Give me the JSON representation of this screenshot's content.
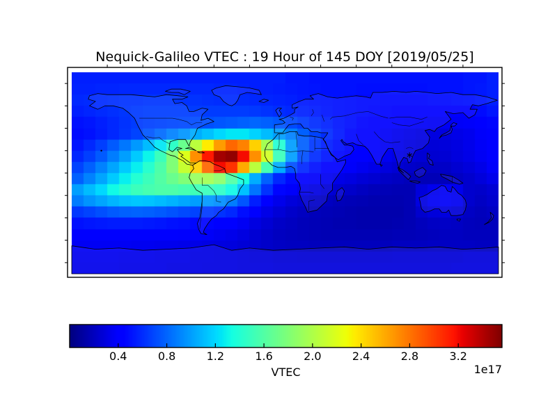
{
  "figure": {
    "background": "#ffffff"
  },
  "chart_data": {
    "type": "heatmap",
    "title": "Nequick-Galileo VTEC : 19 Hour of 145 DOY [2019/05/25]",
    "colormap": "jet",
    "projection": "equirectangular world map with coastlines and country borders",
    "colorbar": {
      "label": "VTEC",
      "offset_text": "1e17",
      "orientation": "horizontal",
      "vmin": 0.0,
      "vmax": 3.56,
      "ticks": [
        0.4,
        0.8,
        1.2,
        1.6,
        2.0,
        2.4,
        2.8,
        3.2
      ],
      "tick_labels": [
        "0.4",
        "0.8",
        "1.2",
        "1.6",
        "2.0",
        "2.4",
        "2.8",
        "3.2"
      ]
    },
    "x": {
      "name": "longitude",
      "min": -180,
      "max": 180,
      "cells": 36
    },
    "y": {
      "name": "latitude",
      "min": 90,
      "max": -90,
      "cells": 18
    },
    "values_unit": "1e17 electrons/m^2",
    "values": [
      [
        0.55,
        0.55,
        0.55,
        0.55,
        0.55,
        0.55,
        0.55,
        0.55,
        0.55,
        0.55,
        0.55,
        0.55,
        0.55,
        0.55,
        0.55,
        0.55,
        0.55,
        0.55,
        0.52,
        0.52,
        0.5,
        0.5,
        0.5,
        0.5,
        0.5,
        0.5,
        0.5,
        0.5,
        0.5,
        0.5,
        0.5,
        0.5,
        0.5,
        0.52,
        0.52,
        0.55
      ],
      [
        0.56,
        0.56,
        0.57,
        0.57,
        0.58,
        0.58,
        0.58,
        0.58,
        0.58,
        0.58,
        0.58,
        0.58,
        0.57,
        0.57,
        0.56,
        0.55,
        0.55,
        0.54,
        0.53,
        0.52,
        0.51,
        0.5,
        0.5,
        0.5,
        0.49,
        0.49,
        0.49,
        0.49,
        0.49,
        0.49,
        0.5,
        0.5,
        0.5,
        0.52,
        0.53,
        0.55
      ],
      [
        0.58,
        0.59,
        0.6,
        0.61,
        0.62,
        0.62,
        0.63,
        0.63,
        0.63,
        0.62,
        0.62,
        0.61,
        0.6,
        0.6,
        0.59,
        0.58,
        0.57,
        0.56,
        0.55,
        0.53,
        0.52,
        0.51,
        0.5,
        0.49,
        0.48,
        0.48,
        0.47,
        0.47,
        0.47,
        0.47,
        0.48,
        0.48,
        0.49,
        0.5,
        0.52,
        0.55
      ],
      [
        0.55,
        0.57,
        0.59,
        0.61,
        0.63,
        0.65,
        0.66,
        0.66,
        0.66,
        0.66,
        0.65,
        0.65,
        0.65,
        0.65,
        0.65,
        0.64,
        0.62,
        0.6,
        0.58,
        0.56,
        0.54,
        0.52,
        0.5,
        0.49,
        0.48,
        0.47,
        0.46,
        0.45,
        0.44,
        0.44,
        0.43,
        0.43,
        0.43,
        0.45,
        0.48,
        0.52
      ],
      [
        0.5,
        0.52,
        0.55,
        0.58,
        0.62,
        0.65,
        0.67,
        0.68,
        0.69,
        0.7,
        0.71,
        0.72,
        0.74,
        0.76,
        0.78,
        0.8,
        0.78,
        0.75,
        0.7,
        0.65,
        0.6,
        0.56,
        0.52,
        0.49,
        0.46,
        0.44,
        0.42,
        0.4,
        0.38,
        0.37,
        0.36,
        0.36,
        0.37,
        0.38,
        0.42,
        0.46
      ],
      [
        0.48,
        0.5,
        0.54,
        0.58,
        0.63,
        0.68,
        0.75,
        0.82,
        0.9,
        0.97,
        1.05,
        1.12,
        1.2,
        1.25,
        1.25,
        1.18,
        1.1,
        1.0,
        0.9,
        0.78,
        0.68,
        0.6,
        0.53,
        0.47,
        0.43,
        0.4,
        0.37,
        0.34,
        0.32,
        0.3,
        0.3,
        0.3,
        0.32,
        0.34,
        0.38,
        0.43
      ],
      [
        0.52,
        0.58,
        0.66,
        0.76,
        0.86,
        0.98,
        1.1,
        1.25,
        1.45,
        1.7,
        2.05,
        2.35,
        2.65,
        2.85,
        2.75,
        2.45,
        1.95,
        1.4,
        1.0,
        0.78,
        0.64,
        0.55,
        0.5,
        0.46,
        0.42,
        0.39,
        0.36,
        0.33,
        0.3,
        0.28,
        0.27,
        0.28,
        0.3,
        0.33,
        0.37,
        0.43
      ],
      [
        0.58,
        0.66,
        0.76,
        0.88,
        1.0,
        1.15,
        1.3,
        1.5,
        1.8,
        2.2,
        2.7,
        3.15,
        3.45,
        3.5,
        3.2,
        2.7,
        2.15,
        1.5,
        1.0,
        0.72,
        0.6,
        0.52,
        0.47,
        0.44,
        0.41,
        0.38,
        0.35,
        0.31,
        0.28,
        0.26,
        0.25,
        0.26,
        0.29,
        0.32,
        0.36,
        0.42
      ],
      [
        0.68,
        0.78,
        0.9,
        1.02,
        1.15,
        1.28,
        1.42,
        1.58,
        1.8,
        2.1,
        2.45,
        2.85,
        3.2,
        3.05,
        2.6,
        2.05,
        1.55,
        1.05,
        0.72,
        0.58,
        0.5,
        0.45,
        0.41,
        0.38,
        0.35,
        0.32,
        0.29,
        0.26,
        0.23,
        0.21,
        0.21,
        0.22,
        0.25,
        0.28,
        0.32,
        0.38
      ],
      [
        0.78,
        0.9,
        1.02,
        1.15,
        1.28,
        1.4,
        1.5,
        1.6,
        1.7,
        1.8,
        1.9,
        1.95,
        1.85,
        1.6,
        1.35,
        1.05,
        0.78,
        0.58,
        0.48,
        0.42,
        0.38,
        0.35,
        0.32,
        0.3,
        0.27,
        0.25,
        0.22,
        0.2,
        0.18,
        0.17,
        0.17,
        0.18,
        0.21,
        0.24,
        0.28,
        0.33
      ],
      [
        1.0,
        1.1,
        1.2,
        1.32,
        1.42,
        1.5,
        1.55,
        1.58,
        1.58,
        1.55,
        1.52,
        1.5,
        1.45,
        1.32,
        1.12,
        0.85,
        0.62,
        0.46,
        0.38,
        0.33,
        0.3,
        0.27,
        0.25,
        0.23,
        0.2,
        0.18,
        0.17,
        0.16,
        0.16,
        0.28,
        0.34,
        0.36,
        0.34,
        0.24,
        0.23,
        0.26
      ],
      [
        0.88,
        0.96,
        1.02,
        1.08,
        1.12,
        1.14,
        1.13,
        1.1,
        1.07,
        1.03,
        1.0,
        0.98,
        0.94,
        0.88,
        0.74,
        0.55,
        0.42,
        0.33,
        0.28,
        0.25,
        0.22,
        0.2,
        0.18,
        0.17,
        0.16,
        0.15,
        0.15,
        0.15,
        0.16,
        0.3,
        0.36,
        0.37,
        0.35,
        0.24,
        0.21,
        0.24
      ],
      [
        0.64,
        0.68,
        0.72,
        0.76,
        0.78,
        0.79,
        0.78,
        0.76,
        0.73,
        0.7,
        0.68,
        0.65,
        0.62,
        0.58,
        0.49,
        0.39,
        0.32,
        0.27,
        0.23,
        0.2,
        0.18,
        0.17,
        0.16,
        0.15,
        0.14,
        0.14,
        0.14,
        0.14,
        0.16,
        0.24,
        0.28,
        0.29,
        0.27,
        0.21,
        0.19,
        0.21
      ],
      [
        0.5,
        0.52,
        0.53,
        0.54,
        0.54,
        0.54,
        0.53,
        0.52,
        0.5,
        0.49,
        0.47,
        0.46,
        0.44,
        0.41,
        0.36,
        0.3,
        0.26,
        0.22,
        0.2,
        0.18,
        0.17,
        0.16,
        0.15,
        0.15,
        0.14,
        0.14,
        0.14,
        0.15,
        0.16,
        0.19,
        0.21,
        0.22,
        0.21,
        0.19,
        0.18,
        0.19
      ],
      [
        0.42,
        0.43,
        0.43,
        0.43,
        0.43,
        0.42,
        0.42,
        0.41,
        0.4,
        0.39,
        0.38,
        0.37,
        0.35,
        0.33,
        0.3,
        0.26,
        0.23,
        0.2,
        0.19,
        0.18,
        0.17,
        0.16,
        0.16,
        0.16,
        0.16,
        0.16,
        0.16,
        0.17,
        0.17,
        0.18,
        0.19,
        0.2,
        0.2,
        0.19,
        0.19,
        0.19
      ],
      [
        0.36,
        0.36,
        0.36,
        0.36,
        0.36,
        0.35,
        0.35,
        0.34,
        0.34,
        0.33,
        0.32,
        0.31,
        0.3,
        0.29,
        0.27,
        0.25,
        0.23,
        0.21,
        0.2,
        0.2,
        0.19,
        0.19,
        0.19,
        0.19,
        0.19,
        0.19,
        0.19,
        0.2,
        0.2,
        0.2,
        0.21,
        0.21,
        0.21,
        0.21,
        0.2,
        0.2
      ],
      [
        0.34,
        0.34,
        0.34,
        0.34,
        0.33,
        0.33,
        0.33,
        0.32,
        0.32,
        0.32,
        0.31,
        0.31,
        0.3,
        0.3,
        0.29,
        0.28,
        0.28,
        0.27,
        0.27,
        0.26,
        0.26,
        0.26,
        0.26,
        0.26,
        0.26,
        0.26,
        0.26,
        0.27,
        0.27,
        0.27,
        0.27,
        0.27,
        0.27,
        0.28,
        0.28,
        0.28
      ],
      [
        0.33,
        0.33,
        0.33,
        0.33,
        0.32,
        0.32,
        0.32,
        0.32,
        0.31,
        0.31,
        0.31,
        0.3,
        0.3,
        0.3,
        0.29,
        0.29,
        0.29,
        0.28,
        0.28,
        0.28,
        0.28,
        0.28,
        0.28,
        0.28,
        0.28,
        0.28,
        0.28,
        0.28,
        0.28,
        0.28,
        0.28,
        0.28,
        0.29,
        0.29,
        0.29,
        0.29
      ]
    ],
    "annotations": [
      {
        "name": "station-marker",
        "symbol": "*",
        "lon": 105,
        "lat": 16
      }
    ]
  }
}
